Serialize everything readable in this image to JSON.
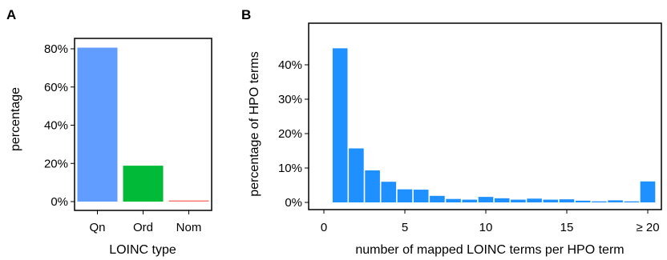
{
  "chart_data": [
    {
      "panel": "A",
      "type": "bar",
      "title": "",
      "xlabel": "LOINC type",
      "ylabel": "percentage",
      "categories": [
        "Qn",
        "Ord",
        "Nom"
      ],
      "values": [
        80.6,
        18.8,
        0.6
      ],
      "colors": [
        "#619cff",
        "#00ba38",
        "#f8766d"
      ],
      "ylim": [
        0,
        82
      ],
      "yticks": [
        0,
        20,
        40,
        60,
        80
      ],
      "ytick_labels": [
        "0%",
        "20%",
        "40%",
        "60%",
        "80%"
      ],
      "grid": false,
      "legend": "none"
    },
    {
      "panel": "B",
      "type": "bar",
      "title": "",
      "xlabel": "number of mapped LOINC terms per HPO term",
      "ylabel": "percentage of HPO terms",
      "categories": [
        1,
        2,
        3,
        4,
        5,
        6,
        7,
        8,
        9,
        10,
        11,
        12,
        13,
        14,
        15,
        16,
        17,
        18,
        19,
        20
      ],
      "values": [
        44.8,
        15.7,
        9.3,
        6.0,
        3.8,
        3.7,
        1.9,
        1.0,
        0.8,
        1.6,
        1.2,
        0.8,
        1.1,
        0.8,
        0.9,
        0.5,
        0.3,
        0.6,
        0.3,
        6.1
      ],
      "color": "#1e90ff",
      "xlim": [
        -0.4,
        21.4
      ],
      "ylim": [
        0,
        47
      ],
      "xticks": [
        0,
        5,
        10,
        15,
        20
      ],
      "xtick_labels": [
        "0",
        "5",
        "10",
        "15",
        "≥ 20"
      ],
      "yticks": [
        0,
        10,
        20,
        30,
        40
      ],
      "ytick_labels": [
        "0%",
        "10%",
        "20%",
        "30%",
        "40%"
      ],
      "grid": false,
      "legend": "none"
    }
  ]
}
